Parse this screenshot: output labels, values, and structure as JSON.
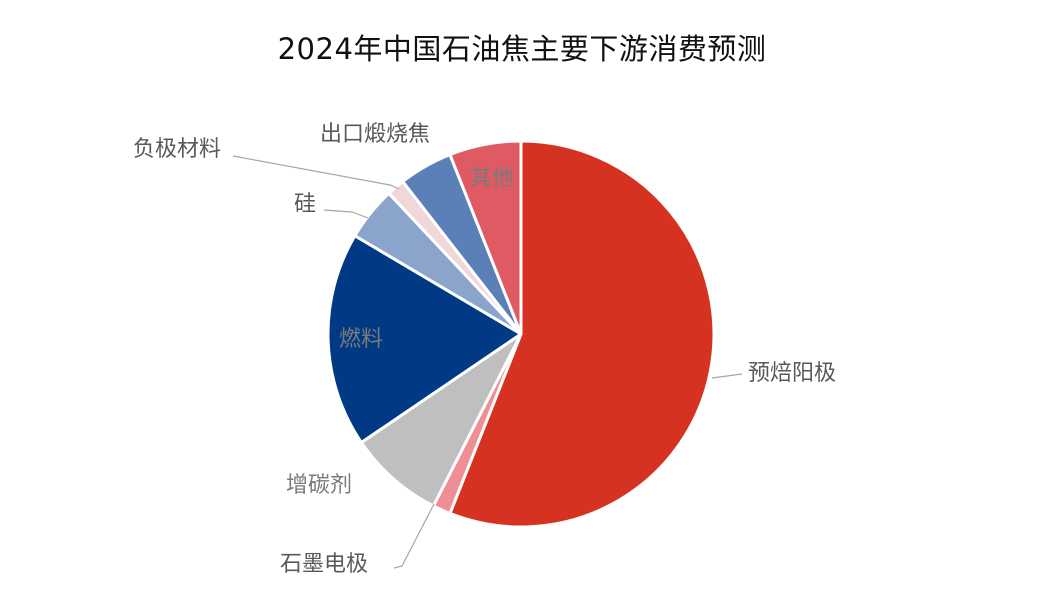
{
  "chart_data": {
    "type": "pie",
    "title": "2024年中国石油焦主要下游消费预测",
    "slices": [
      {
        "label": "预焙阳极",
        "value": 56.0,
        "color": "#d63222"
      },
      {
        "label": "石墨电极",
        "value": 1.5,
        "color": "#ef8f95"
      },
      {
        "label": "增碳剂",
        "value": 8.0,
        "color": "#bfbfbf"
      },
      {
        "label": "燃料",
        "value": 18.0,
        "color": "#003a84"
      },
      {
        "label": "硅",
        "value": 4.5,
        "color": "#8aa4cc"
      },
      {
        "label": "负极材料",
        "value": 1.5,
        "color": "#f0d7d9"
      },
      {
        "label": "出口煅烧焦",
        "value": 4.5,
        "color": "#5b80b8"
      },
      {
        "label": "其他",
        "value": 6.0,
        "color": "#e05a64"
      }
    ],
    "start_angle": "12 o'clock",
    "direction": "clockwise",
    "legend": "none"
  }
}
